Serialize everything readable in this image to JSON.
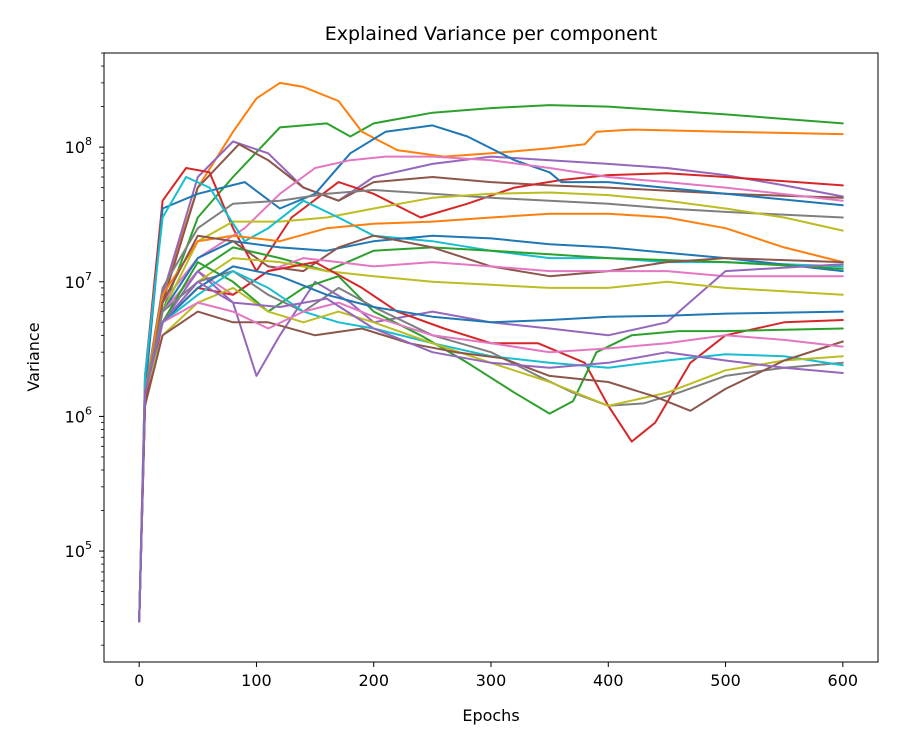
{
  "chart_data": {
    "type": "line",
    "title": "Explained Variance per component",
    "xlabel": "Epochs",
    "ylabel": "Variance",
    "xlim": [
      -30,
      630
    ],
    "ylim": [
      15000,
      500000000
    ],
    "yscale": "log",
    "grid": false,
    "legend": "none",
    "x_ticks": [
      0,
      100,
      200,
      300,
      400,
      500,
      600
    ],
    "y_ticks": [
      {
        "value": 100000,
        "base": "10",
        "exp": "5"
      },
      {
        "value": 1000000,
        "base": "10",
        "exp": "6"
      },
      {
        "value": 10000000,
        "base": "10",
        "exp": "7"
      },
      {
        "value": 100000000,
        "base": "10",
        "exp": "8"
      }
    ],
    "colors": [
      "#1f77b4",
      "#ff7f0e",
      "#2ca02c",
      "#d62728",
      "#9467bd",
      "#8c564b",
      "#e377c2",
      "#7f7f7f",
      "#bcbd22",
      "#17becf"
    ],
    "series": [
      {
        "color": "#2ca02c",
        "x": [
          0,
          5,
          20,
          50,
          80,
          120,
          160,
          180,
          200,
          250,
          300,
          350,
          400,
          500,
          600
        ],
        "y": [
          30000,
          1500000,
          6000000,
          30000000,
          60000000,
          140000000,
          150000000,
          120000000,
          150000000,
          180000000,
          195000000,
          205000000,
          200000000,
          175000000,
          150000000
        ]
      },
      {
        "color": "#ff7f0e",
        "x": [
          0,
          5,
          20,
          50,
          80,
          100,
          120,
          140,
          170,
          190,
          220,
          260,
          300,
          350,
          380,
          390,
          420,
          500,
          600
        ],
        "y": [
          30000,
          1500000,
          8000000,
          50000000,
          130000000,
          230000000,
          300000000,
          280000000,
          220000000,
          130000000,
          95000000,
          85000000,
          90000000,
          98000000,
          105000000,
          130000000,
          135000000,
          130000000,
          125000000
        ]
      },
      {
        "color": "#9467bd",
        "x": [
          0,
          5,
          20,
          50,
          80,
          110,
          140,
          170,
          200,
          250,
          300,
          350,
          400,
          450,
          500,
          550,
          600
        ],
        "y": [
          30000,
          1500000,
          8000000,
          60000000,
          110000000,
          90000000,
          50000000,
          40000000,
          60000000,
          75000000,
          85000000,
          80000000,
          75000000,
          70000000,
          62000000,
          52000000,
          43000000
        ]
      },
      {
        "color": "#8c564b",
        "x": [
          0,
          5,
          20,
          50,
          85,
          110,
          140,
          170,
          200,
          250,
          300,
          350,
          400,
          500,
          600
        ],
        "y": [
          30000,
          1200000,
          7000000,
          50000000,
          105000000,
          80000000,
          50000000,
          40000000,
          55000000,
          60000000,
          55000000,
          52000000,
          50000000,
          45000000,
          42000000
        ]
      },
      {
        "color": "#d62728",
        "x": [
          0,
          5,
          20,
          40,
          60,
          80,
          100,
          130,
          170,
          200,
          240,
          280,
          320,
          360,
          400,
          450,
          500,
          600
        ],
        "y": [
          30000,
          2000000,
          40000000,
          70000000,
          65000000,
          25000000,
          12000000,
          30000000,
          55000000,
          45000000,
          30000000,
          38000000,
          50000000,
          57000000,
          62000000,
          64000000,
          60000000,
          52000000
        ]
      },
      {
        "color": "#1f77b4",
        "x": [
          0,
          5,
          20,
          50,
          90,
          120,
          150,
          180,
          210,
          250,
          280,
          320,
          350,
          360,
          400,
          500,
          600
        ],
        "y": [
          30000,
          1500000,
          35000000,
          45000000,
          55000000,
          35000000,
          45000000,
          90000000,
          130000000,
          145000000,
          120000000,
          80000000,
          65000000,
          55000000,
          55000000,
          45000000,
          37000000
        ]
      },
      {
        "color": "#e377c2",
        "x": [
          0,
          5,
          20,
          50,
          90,
          120,
          150,
          180,
          210,
          250,
          300,
          350,
          400,
          450,
          500,
          600
        ],
        "y": [
          30000,
          1500000,
          7000000,
          15000000,
          25000000,
          45000000,
          70000000,
          80000000,
          85000000,
          85000000,
          80000000,
          70000000,
          60000000,
          55000000,
          50000000,
          40000000
        ]
      },
      {
        "color": "#7f7f7f",
        "x": [
          0,
          5,
          20,
          50,
          80,
          120,
          160,
          200,
          250,
          300,
          350,
          400,
          450,
          500,
          600
        ],
        "y": [
          30000,
          1500000,
          9000000,
          25000000,
          38000000,
          40000000,
          45000000,
          48000000,
          45000000,
          42000000,
          40000000,
          38000000,
          35000000,
          33000000,
          30000000
        ]
      },
      {
        "color": "#bcbd22",
        "x": [
          0,
          5,
          20,
          50,
          80,
          120,
          160,
          200,
          250,
          300,
          350,
          400,
          450,
          500,
          550,
          600
        ],
        "y": [
          30000,
          1500000,
          6000000,
          20000000,
          28000000,
          28000000,
          30000000,
          35000000,
          42000000,
          45000000,
          46000000,
          44000000,
          40000000,
          35000000,
          30000000,
          24000000
        ]
      },
      {
        "color": "#17becf",
        "x": [
          0,
          5,
          20,
          40,
          60,
          90,
          110,
          140,
          170,
          200,
          250,
          300,
          350,
          400,
          450,
          500,
          600
        ],
        "y": [
          30000,
          2000000,
          30000000,
          60000000,
          50000000,
          20000000,
          25000000,
          40000000,
          30000000,
          22000000,
          20000000,
          17000000,
          15000000,
          15000000,
          14000000,
          14000000,
          13000000
        ]
      },
      {
        "color": "#ff7f0e",
        "x": [
          0,
          5,
          20,
          50,
          80,
          120,
          160,
          200,
          250,
          300,
          350,
          400,
          450,
          500,
          550,
          600
        ],
        "y": [
          30000,
          1500000,
          8000000,
          20000000,
          22000000,
          20000000,
          25000000,
          27000000,
          28000000,
          30000000,
          32000000,
          32000000,
          30000000,
          25000000,
          18000000,
          14000000
        ]
      },
      {
        "color": "#1f77b4",
        "x": [
          0,
          5,
          20,
          50,
          80,
          120,
          160,
          200,
          250,
          300,
          350,
          400,
          500,
          600
        ],
        "y": [
          30000,
          1500000,
          6000000,
          15000000,
          20000000,
          18000000,
          17000000,
          20000000,
          22000000,
          21000000,
          19000000,
          18000000,
          15000000,
          12000000
        ]
      },
      {
        "color": "#2ca02c",
        "x": [
          0,
          5,
          20,
          50,
          80,
          120,
          160,
          200,
          250,
          300,
          350,
          400,
          500,
          600
        ],
        "y": [
          30000,
          1500000,
          6000000,
          12000000,
          18000000,
          15000000,
          12000000,
          17000000,
          18000000,
          17000000,
          16000000,
          15000000,
          14000000,
          12500000
        ]
      },
      {
        "color": "#8c564b",
        "x": [
          0,
          5,
          20,
          50,
          80,
          110,
          140,
          170,
          200,
          250,
          300,
          350,
          400,
          450,
          500,
          600
        ],
        "y": [
          30000,
          1200000,
          7000000,
          22000000,
          20000000,
          13000000,
          12000000,
          18000000,
          22000000,
          18000000,
          13000000,
          11000000,
          12000000,
          14000000,
          15000000,
          14000000
        ]
      },
      {
        "color": "#e377c2",
        "x": [
          0,
          5,
          20,
          50,
          80,
          110,
          140,
          170,
          200,
          250,
          300,
          350,
          400,
          450,
          500,
          600
        ],
        "y": [
          30000,
          1500000,
          6000000,
          12000000,
          8000000,
          12000000,
          15000000,
          14000000,
          13000000,
          14000000,
          13000000,
          12000000,
          12000000,
          12000000,
          11000000,
          11000000
        ]
      },
      {
        "color": "#9467bd",
        "x": [
          0,
          5,
          20,
          50,
          80,
          100,
          120,
          150,
          180,
          200,
          250,
          300,
          350,
          400,
          450,
          500,
          600
        ],
        "y": [
          30000,
          1500000,
          5000000,
          12000000,
          7000000,
          2000000,
          4000000,
          10000000,
          7000000,
          5000000,
          6000000,
          5000000,
          4500000,
          4000000,
          5000000,
          12000000,
          13500000
        ]
      },
      {
        "color": "#bcbd22",
        "x": [
          0,
          5,
          20,
          50,
          80,
          120,
          160,
          200,
          250,
          300,
          350,
          400,
          450,
          500,
          600
        ],
        "y": [
          30000,
          1500000,
          5000000,
          10000000,
          15000000,
          14000000,
          12000000,
          11000000,
          10000000,
          9500000,
          9000000,
          9000000,
          10000000,
          9000000,
          8000000
        ]
      },
      {
        "color": "#d62728",
        "x": [
          0,
          5,
          20,
          50,
          80,
          110,
          150,
          190,
          220,
          260,
          300,
          340,
          380,
          400,
          420,
          440,
          470,
          500,
          550,
          600
        ],
        "y": [
          30000,
          1200000,
          5000000,
          9000000,
          8000000,
          12000000,
          14000000,
          9000000,
          6000000,
          4500000,
          3500000,
          3500000,
          2500000,
          1200000,
          650000,
          900000,
          2500000,
          4000000,
          5000000,
          5200000
        ]
      },
      {
        "color": "#2ca02c",
        "x": [
          0,
          5,
          20,
          50,
          80,
          110,
          140,
          170,
          200,
          240,
          280,
          320,
          350,
          370,
          390,
          420,
          460,
          500,
          550,
          600
        ],
        "y": [
          30000,
          1500000,
          5000000,
          14000000,
          10000000,
          6000000,
          9000000,
          11000000,
          6000000,
          4000000,
          2500000,
          1500000,
          1050000,
          1300000,
          3000000,
          4000000,
          4300000,
          4300000,
          4400000,
          4500000
        ]
      },
      {
        "color": "#7f7f7f",
        "x": [
          0,
          5,
          20,
          50,
          80,
          110,
          140,
          170,
          200,
          250,
          300,
          340,
          370,
          400,
          430,
          460,
          500,
          550,
          600
        ],
        "y": [
          30000,
          1500000,
          6000000,
          10000000,
          12000000,
          8000000,
          6000000,
          9000000,
          6500000,
          4000000,
          3000000,
          2000000,
          1500000,
          1200000,
          1250000,
          1500000,
          2000000,
          2300000,
          2500000
        ]
      },
      {
        "color": "#17becf",
        "x": [
          0,
          5,
          20,
          50,
          80,
          110,
          140,
          170,
          200,
          250,
          300,
          350,
          400,
          450,
          500,
          550,
          600
        ],
        "y": [
          30000,
          1500000,
          5000000,
          8000000,
          12000000,
          9000000,
          6000000,
          5000000,
          4500000,
          3500000,
          2800000,
          2500000,
          2300000,
          2600000,
          2900000,
          2800000,
          2400000
        ]
      },
      {
        "color": "#bcbd22",
        "x": [
          0,
          5,
          20,
          50,
          80,
          110,
          140,
          170,
          200,
          250,
          300,
          350,
          400,
          450,
          500,
          550,
          600
        ],
        "y": [
          30000,
          1500000,
          4000000,
          7000000,
          9000000,
          6000000,
          5000000,
          6000000,
          5000000,
          3500000,
          2500000,
          1800000,
          1200000,
          1500000,
          2200000,
          2600000,
          2800000
        ]
      },
      {
        "color": "#8c564b",
        "x": [
          0,
          5,
          20,
          50,
          80,
          110,
          150,
          190,
          230,
          270,
          310,
          350,
          400,
          440,
          470,
          500,
          550,
          600
        ],
        "y": [
          30000,
          1200000,
          4000000,
          6000000,
          5000000,
          5000000,
          4000000,
          4500000,
          3500000,
          3000000,
          2700000,
          2000000,
          1800000,
          1400000,
          1100000,
          1600000,
          2600000,
          3600000
        ]
      },
      {
        "color": "#e377c2",
        "x": [
          0,
          5,
          20,
          50,
          80,
          110,
          140,
          170,
          200,
          250,
          300,
          350,
          400,
          450,
          500,
          550,
          600
        ],
        "y": [
          30000,
          1500000,
          5000000,
          7000000,
          6000000,
          4500000,
          6000000,
          7000000,
          5500000,
          4000000,
          3500000,
          3000000,
          3200000,
          3500000,
          4000000,
          3700000,
          3300000
        ]
      },
      {
        "color": "#1f77b4",
        "x": [
          0,
          5,
          20,
          50,
          80,
          120,
          160,
          200,
          250,
          300,
          350,
          400,
          450,
          500,
          550,
          600
        ],
        "y": [
          30000,
          1500000,
          5000000,
          9000000,
          13000000,
          11000000,
          8000000,
          6500000,
          5500000,
          5000000,
          5200000,
          5500000,
          5600000,
          5800000,
          5900000,
          6000000
        ]
      },
      {
        "color": "#9467bd",
        "x": [
          0,
          5,
          20,
          50,
          80,
          120,
          160,
          200,
          250,
          300,
          350,
          400,
          450,
          500,
          550,
          600
        ],
        "y": [
          30000,
          1500000,
          5000000,
          10000000,
          7000000,
          6500000,
          7500000,
          4500000,
          3000000,
          2500000,
          2300000,
          2500000,
          3000000,
          2600000,
          2300000,
          2100000
        ]
      }
    ]
  }
}
